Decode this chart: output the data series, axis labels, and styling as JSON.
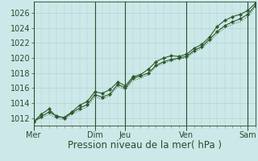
{
  "background_color": "#cce8e8",
  "grid_color": "#b0cccc",
  "line_color": "#2d5a2d",
  "marker_color": "#2d5a2d",
  "xlabel": "Pression niveau de la mer( hPa )",
  "xlabel_fontsize": 8.5,
  "tick_fontsize": 7,
  "ylim": [
    1011.0,
    1027.5
  ],
  "yticks": [
    1012,
    1014,
    1016,
    1018,
    1020,
    1022,
    1024,
    1026
  ],
  "day_labels": [
    "Mer",
    "Dim",
    "Jeu",
    "Ven",
    "Sam"
  ],
  "day_positions": [
    0,
    96,
    144,
    240,
    336
  ],
  "xlim": [
    0,
    348
  ],
  "series1_x": [
    0,
    12,
    24,
    36,
    48,
    60,
    72,
    84,
    96,
    108,
    120,
    132,
    144,
    156,
    168,
    180,
    192,
    204,
    216,
    228,
    240,
    252,
    264,
    276,
    288,
    300,
    312,
    324,
    336,
    348
  ],
  "series1_y": [
    1011.5,
    1012.2,
    1012.8,
    1012.3,
    1012.0,
    1012.7,
    1013.3,
    1013.8,
    1015.1,
    1014.8,
    1015.2,
    1016.5,
    1016.0,
    1017.3,
    1017.6,
    1018.0,
    1019.0,
    1019.5,
    1019.8,
    1020.0,
    1020.2,
    1021.0,
    1021.5,
    1022.5,
    1023.5,
    1024.3,
    1024.8,
    1025.2,
    1025.8,
    1027.0
  ],
  "series2_x": [
    0,
    12,
    24,
    36,
    48,
    60,
    72,
    84,
    96,
    108,
    120,
    132,
    144,
    156,
    168,
    180,
    192,
    204,
    216,
    228,
    240,
    252,
    264,
    276,
    288,
    300,
    312,
    324,
    336,
    348
  ],
  "series2_y": [
    1011.5,
    1012.5,
    1013.2,
    1012.2,
    1012.1,
    1012.8,
    1013.7,
    1014.2,
    1015.5,
    1015.3,
    1015.8,
    1016.8,
    1016.3,
    1017.5,
    1017.8,
    1018.5,
    1019.5,
    1020.0,
    1020.3,
    1020.2,
    1020.5,
    1021.3,
    1021.8,
    1022.8,
    1024.2,
    1025.0,
    1025.5,
    1025.8,
    1026.3,
    1027.3
  ],
  "series3_x": [
    0,
    12,
    24,
    36,
    48,
    60,
    72,
    84,
    96,
    108,
    120,
    132,
    144,
    156,
    168,
    180,
    192,
    204,
    216,
    228,
    240,
    252,
    264,
    276,
    288,
    300,
    312,
    324,
    336,
    348
  ],
  "series3_y": [
    1011.5,
    1012.0,
    1012.5,
    1012.0,
    1011.8,
    1012.5,
    1013.0,
    1013.5,
    1014.8,
    1014.5,
    1015.0,
    1016.2,
    1015.8,
    1017.0,
    1017.3,
    1017.8,
    1018.8,
    1019.3,
    1019.6,
    1019.9,
    1020.0,
    1020.8,
    1021.3,
    1022.2,
    1023.2,
    1024.0,
    1024.5,
    1024.8,
    1025.5,
    1026.8
  ],
  "minor_xticks_step": 12
}
